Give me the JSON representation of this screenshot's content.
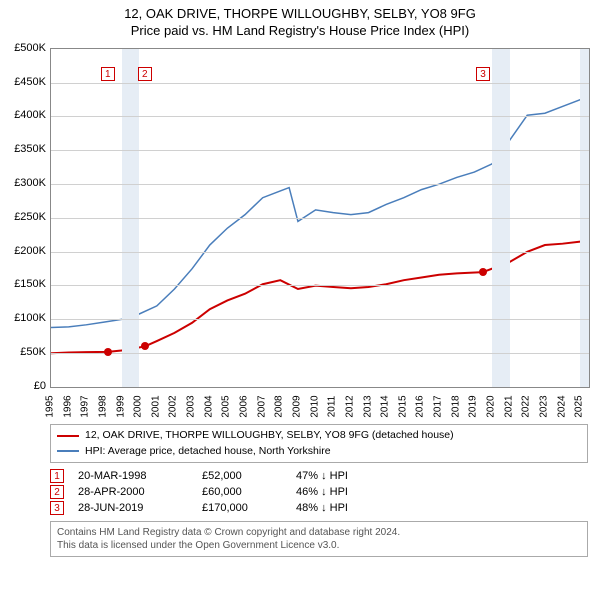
{
  "title_line1": "12, OAK DRIVE, THORPE WILLOUGHBY, SELBY, YO8 9FG",
  "title_line2": "Price paid vs. HM Land Registry's House Price Index (HPI)",
  "chart": {
    "type": "line",
    "background_color": "#ffffff",
    "grid_color": "#d0d0d0",
    "band_color": "#e6edf5",
    "x_years": [
      1995,
      1996,
      1997,
      1998,
      1999,
      2000,
      2001,
      2002,
      2003,
      2004,
      2005,
      2006,
      2007,
      2008,
      2009,
      2010,
      2011,
      2012,
      2013,
      2014,
      2015,
      2016,
      2017,
      2018,
      2019,
      2020,
      2021,
      2022,
      2023,
      2024,
      2025
    ],
    "xlim": [
      1995,
      2025.5
    ],
    "ylim": [
      0,
      500000
    ],
    "ytick_step": 50000,
    "ytick_labels": [
      "£0",
      "£50K",
      "£100K",
      "£150K",
      "£200K",
      "£250K",
      "£300K",
      "£350K",
      "£400K",
      "£450K",
      "£500K"
    ],
    "currency_prefix": "£",
    "bands": [
      {
        "from": 1999,
        "to": 2000
      },
      {
        "from": 2020,
        "to": 2021
      },
      {
        "from": 2025,
        "to": 2025.5
      }
    ],
    "series": [
      {
        "name": "property_price",
        "label": "12, OAK DRIVE, THORPE WILLOUGHBY, SELBY, YO8 9FG (detached house)",
        "color": "#cc0000",
        "line_width": 2,
        "points": [
          [
            1995,
            50000
          ],
          [
            1996,
            51000
          ],
          [
            1997,
            51500
          ],
          [
            1998.22,
            52000
          ],
          [
            1999,
            54000
          ],
          [
            2000.32,
            60000
          ],
          [
            2001,
            68000
          ],
          [
            2002,
            80000
          ],
          [
            2003,
            95000
          ],
          [
            2004,
            115000
          ],
          [
            2005,
            128000
          ],
          [
            2006,
            138000
          ],
          [
            2007,
            152000
          ],
          [
            2008,
            158000
          ],
          [
            2009,
            145000
          ],
          [
            2010,
            150000
          ],
          [
            2011,
            148000
          ],
          [
            2012,
            146000
          ],
          [
            2013,
            148000
          ],
          [
            2014,
            152000
          ],
          [
            2015,
            158000
          ],
          [
            2016,
            162000
          ],
          [
            2017,
            166000
          ],
          [
            2018,
            168000
          ],
          [
            2019.49,
            170000
          ],
          [
            2020,
            175000
          ],
          [
            2021,
            185000
          ],
          [
            2022,
            200000
          ],
          [
            2023,
            210000
          ],
          [
            2024,
            212000
          ],
          [
            2025,
            215000
          ],
          [
            2025.5,
            216000
          ]
        ]
      },
      {
        "name": "hpi",
        "label": "HPI: Average price, detached house, North Yorkshire",
        "color": "#4a7ebb",
        "line_width": 1.5,
        "points": [
          [
            1995,
            88000
          ],
          [
            1996,
            89000
          ],
          [
            1997,
            92000
          ],
          [
            1998,
            96000
          ],
          [
            1999,
            100000
          ],
          [
            2000,
            108000
          ],
          [
            2001,
            120000
          ],
          [
            2002,
            145000
          ],
          [
            2003,
            175000
          ],
          [
            2004,
            210000
          ],
          [
            2005,
            235000
          ],
          [
            2006,
            255000
          ],
          [
            2007,
            280000
          ],
          [
            2008,
            290000
          ],
          [
            2008.5,
            295000
          ],
          [
            2009,
            245000
          ],
          [
            2010,
            262000
          ],
          [
            2011,
            258000
          ],
          [
            2012,
            255000
          ],
          [
            2013,
            258000
          ],
          [
            2014,
            270000
          ],
          [
            2015,
            280000
          ],
          [
            2016,
            292000
          ],
          [
            2017,
            300000
          ],
          [
            2018,
            310000
          ],
          [
            2019,
            318000
          ],
          [
            2020,
            330000
          ],
          [
            2021,
            365000
          ],
          [
            2022,
            402000
          ],
          [
            2023,
            405000
          ],
          [
            2024,
            415000
          ],
          [
            2025,
            425000
          ],
          [
            2025.5,
            430000
          ]
        ]
      }
    ],
    "markers": [
      {
        "idx": "1",
        "x": 1998.22,
        "y": 52000
      },
      {
        "idx": "2",
        "x": 2000.32,
        "y": 60000
      },
      {
        "idx": "3",
        "x": 2019.49,
        "y": 170000
      }
    ],
    "marker_box_top_offset": 18,
    "label_fontsize": 11,
    "xlabel_fontsize": 10
  },
  "legend": {
    "border_color": "#aaaaaa"
  },
  "events": [
    {
      "idx": "1",
      "date": "20-MAR-1998",
      "price": "£52,000",
      "hpi": "47% ↓ HPI"
    },
    {
      "idx": "2",
      "date": "28-APR-2000",
      "price": "£60,000",
      "hpi": "46% ↓ HPI"
    },
    {
      "idx": "3",
      "date": "28-JUN-2019",
      "price": "£170,000",
      "hpi": "48% ↓ HPI"
    }
  ],
  "footer_line1": "Contains HM Land Registry data © Crown copyright and database right 2024.",
  "footer_line2": "This data is licensed under the Open Government Licence v3.0."
}
